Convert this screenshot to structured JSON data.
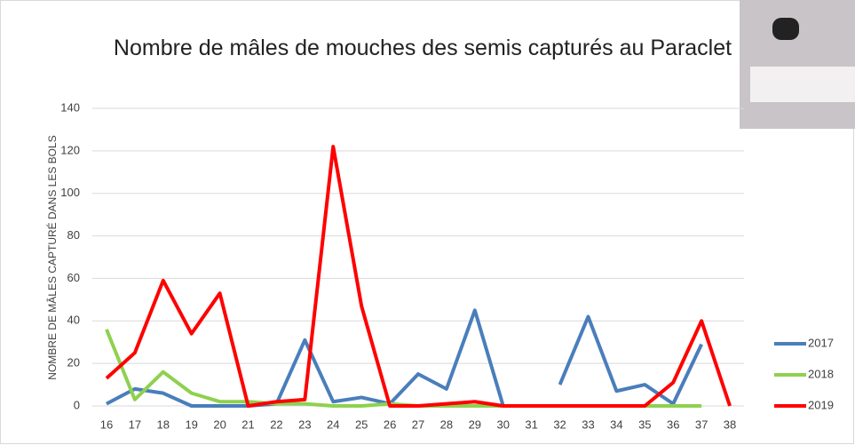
{
  "chart_data": {
    "type": "line",
    "title": "Nombre de mâles de mouches des semis capturés au Paraclet",
    "y_label": "NOMBRE DE MÂLES CAPTURÉ DANS LES BOLS",
    "categories": [
      "16",
      "17",
      "18",
      "19",
      "20",
      "21",
      "22",
      "23",
      "24",
      "25",
      "26",
      "27",
      "28",
      "29",
      "30",
      "31",
      "32",
      "33",
      "34",
      "35",
      "36",
      "37",
      "38"
    ],
    "series": [
      {
        "name": "2017",
        "color": "#4a7ebb",
        "values": [
          1,
          8,
          6,
          0,
          0,
          0,
          1,
          31,
          2,
          4,
          1,
          15,
          8,
          45,
          0,
          null,
          10,
          42,
          7,
          10,
          1,
          29,
          null
        ]
      },
      {
        "name": "2018",
        "color": "#8ed14f",
        "values": [
          36,
          3,
          16,
          6,
          2,
          2,
          1,
          1,
          0,
          0,
          1,
          0,
          0,
          0,
          0,
          0,
          0,
          0,
          0,
          0,
          0,
          0,
          null
        ]
      },
      {
        "name": "2019",
        "color": "#ff0000",
        "values": [
          13,
          25,
          59,
          34,
          53,
          0,
          2,
          3,
          122,
          47,
          0,
          0,
          1,
          2,
          0,
          0,
          0,
          0,
          0,
          0,
          11,
          40,
          0
        ]
      }
    ],
    "ylim": [
      0,
      140
    ],
    "yticks": [
      0,
      20,
      40,
      60,
      80,
      100,
      120,
      140
    ],
    "grid": true,
    "legend": "right"
  }
}
